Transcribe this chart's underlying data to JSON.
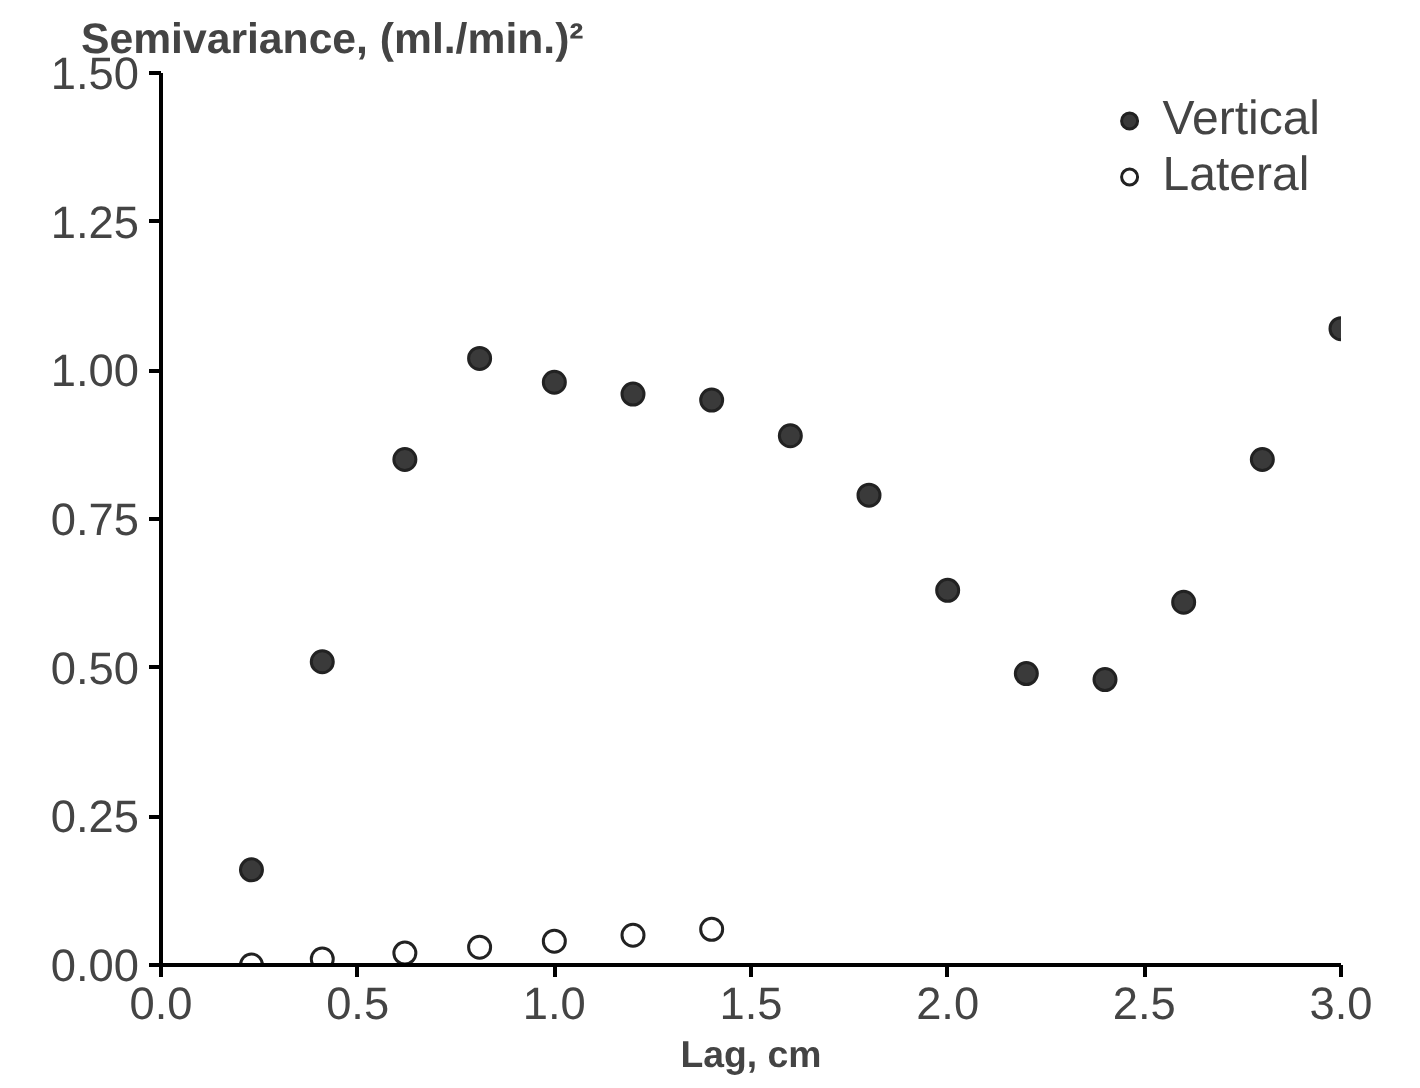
{
  "chart_data": {
    "type": "scatter",
    "xlabel": "Lag, cm",
    "ylabel": "Semivariance, (ml./min.)²",
    "xlim": [
      0,
      3.0
    ],
    "ylim": [
      0,
      1.5
    ],
    "xticks": [
      {
        "value": 0,
        "label": "0.0"
      },
      0.5,
      {
        "value": 1,
        "label": "1.0"
      },
      1.5,
      {
        "value": 2,
        "label": "2.0"
      },
      2.5,
      {
        "value": 3,
        "label": "3.0"
      }
    ],
    "yticks": [
      {
        "value": 0,
        "label": "0.00"
      },
      0.25,
      {
        "value": 0.5,
        "label": "0.50"
      },
      0.75,
      {
        "value": 1,
        "label": "1.00"
      },
      1.25,
      {
        "value": 1.5,
        "label": "1.50"
      }
    ],
    "grid": false,
    "legend": "top right",
    "marker": "circle",
    "series": [
      {
        "name": "Vertical",
        "color": "#3a3a3a",
        "x": [
          0.23,
          0.41,
          0.62,
          0.81,
          1.0,
          1.2,
          1.4,
          1.6,
          1.8,
          2.0,
          2.2,
          2.4,
          2.6,
          2.8,
          3.0
        ],
        "values": [
          0.16,
          0.51,
          0.85,
          1.02,
          0.98,
          0.96,
          0.95,
          0.89,
          0.79,
          0.63,
          0.49,
          0.48,
          0.61,
          0.85,
          1.07
        ]
      },
      {
        "name": "Lateral",
        "color": "#ffffff",
        "x": [
          0.23,
          0.41,
          0.62,
          0.81,
          1.0,
          1.2,
          1.4
        ],
        "values": [
          0.0,
          0.01,
          0.02,
          0.03,
          0.04,
          0.05,
          0.06
        ]
      }
    ]
  }
}
